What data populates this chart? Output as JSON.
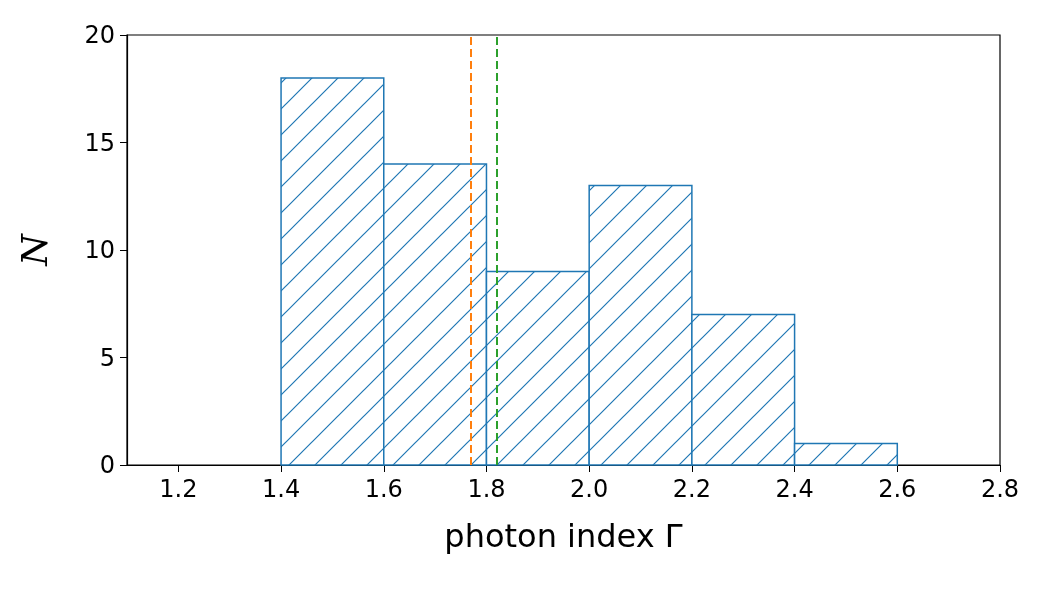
{
  "chart_data": {
    "type": "histogram",
    "xlabel": "photon index Γ",
    "ylabel": "N",
    "bins": [
      1.4,
      1.6,
      1.8,
      2.0,
      2.2,
      2.4,
      2.6
    ],
    "values": [
      18,
      14,
      9,
      13,
      7,
      1
    ],
    "color": "#1f77b4",
    "xlim": [
      1.1,
      2.8
    ],
    "xticks": [
      1.2,
      1.4,
      1.6,
      1.8,
      {
        "value": 2,
        "label": "2.0"
      },
      2.2,
      2.4,
      2.6,
      2.8
    ],
    "ylim": [
      0,
      20
    ],
    "yticks": [
      0,
      5,
      10,
      15,
      20
    ],
    "ref_lines": [
      {
        "axis": "x",
        "value": 1.77,
        "color": "#ff7f0e",
        "line_style": "dashed"
      },
      {
        "axis": "x",
        "value": 1.82,
        "color": "#2ca02c",
        "line_style": "dashed"
      }
    ],
    "grid": false
  }
}
